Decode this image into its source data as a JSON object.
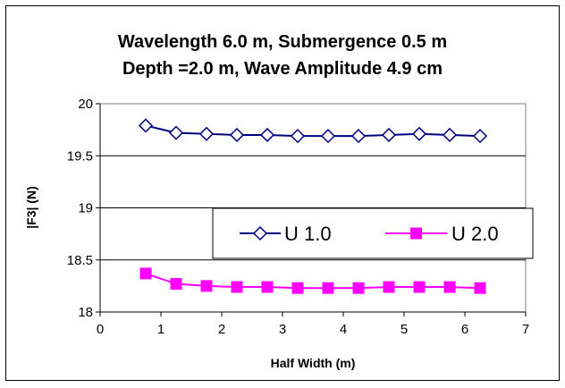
{
  "chart_data": {
    "type": "line",
    "title_line1": "Wavelength 6.0 m, Submergence 0.5 m",
    "title_line2": "Depth =2.0 m, Wave Amplitude 4.9 cm",
    "xlabel": "Half Width  (m)",
    "ylabel": "|F3| (N)",
    "xlim": [
      0,
      7
    ],
    "ylim": [
      18,
      20
    ],
    "xticks": [
      "0",
      "1",
      "2",
      "3",
      "4",
      "5",
      "6",
      "7"
    ],
    "yticks": [
      "18",
      "18.5",
      "19",
      "19.5",
      "20"
    ],
    "legend_position": "center-right",
    "x": [
      0.75,
      1.25,
      1.75,
      2.25,
      2.75,
      3.25,
      3.75,
      4.25,
      4.75,
      5.25,
      5.75,
      6.25
    ],
    "series": [
      {
        "name": "U 1.0",
        "color": "#000080",
        "marker": "diamond-open",
        "values": [
          19.79,
          19.72,
          19.71,
          19.7,
          19.7,
          19.69,
          19.69,
          19.69,
          19.7,
          19.71,
          19.7,
          19.69
        ]
      },
      {
        "name": "U 2.0",
        "color": "#FF00FF",
        "marker": "square-filled",
        "values": [
          18.37,
          18.27,
          18.25,
          18.24,
          18.24,
          18.23,
          18.23,
          18.23,
          18.24,
          18.24,
          18.24,
          18.23
        ]
      }
    ]
  }
}
